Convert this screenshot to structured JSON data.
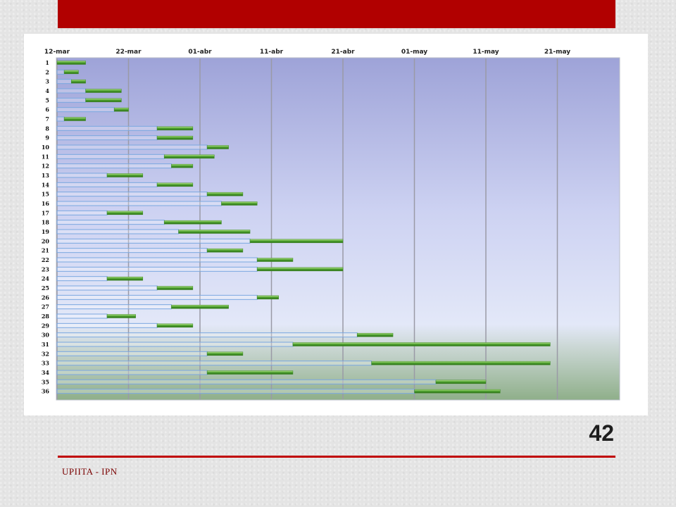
{
  "slide": {
    "number": "42",
    "footer": "UPIITA - IPN",
    "accent_color": "#b10000"
  },
  "chart_data": {
    "type": "gantt",
    "title": "",
    "x_ticks": [
      "12-mar",
      "22-mar",
      "01-abr",
      "11-abr",
      "21-abr",
      "01-may",
      "11-may",
      "21-may"
    ],
    "x_tick_day_values": [
      0,
      10,
      20,
      30,
      40,
      50,
      60,
      70
    ],
    "xlim_days": [
      0,
      79
    ],
    "grid": "vertical",
    "colors": {
      "bar": "#4a9f2c",
      "leader": "#7aa7e0",
      "background_top": "#9ea3d8",
      "background_bottom": "#8faf8a"
    },
    "tasks": [
      {
        "label": "1",
        "start": 0,
        "end": 4
      },
      {
        "label": "2",
        "start": 1,
        "end": 3
      },
      {
        "label": "3",
        "start": 2,
        "end": 4
      },
      {
        "label": "4",
        "start": 4,
        "end": 9
      },
      {
        "label": "5",
        "start": 4,
        "end": 9
      },
      {
        "label": "6",
        "start": 8,
        "end": 10
      },
      {
        "label": "7",
        "start": 1,
        "end": 4
      },
      {
        "label": "8",
        "start": 14,
        "end": 19
      },
      {
        "label": "9",
        "start": 14,
        "end": 19
      },
      {
        "label": "10",
        "start": 21,
        "end": 24
      },
      {
        "label": "11",
        "start": 15,
        "end": 22
      },
      {
        "label": "12",
        "start": 16,
        "end": 19
      },
      {
        "label": "13",
        "start": 7,
        "end": 12
      },
      {
        "label": "14",
        "start": 14,
        "end": 19
      },
      {
        "label": "15",
        "start": 21,
        "end": 26
      },
      {
        "label": "16",
        "start": 23,
        "end": 28
      },
      {
        "label": "17",
        "start": 7,
        "end": 12
      },
      {
        "label": "18",
        "start": 15,
        "end": 23
      },
      {
        "label": "19",
        "start": 17,
        "end": 27
      },
      {
        "label": "20",
        "start": 27,
        "end": 40
      },
      {
        "label": "21",
        "start": 21,
        "end": 26
      },
      {
        "label": "22",
        "start": 28,
        "end": 33
      },
      {
        "label": "23",
        "start": 28,
        "end": 40
      },
      {
        "label": "24",
        "start": 7,
        "end": 12
      },
      {
        "label": "25",
        "start": 14,
        "end": 19
      },
      {
        "label": "26",
        "start": 28,
        "end": 31
      },
      {
        "label": "27",
        "start": 16,
        "end": 24
      },
      {
        "label": "28",
        "start": 7,
        "end": 11
      },
      {
        "label": "29",
        "start": 14,
        "end": 19
      },
      {
        "label": "30",
        "start": 42,
        "end": 47
      },
      {
        "label": "31",
        "start": 33,
        "end": 69
      },
      {
        "label": "32",
        "start": 21,
        "end": 26
      },
      {
        "label": "33",
        "start": 44,
        "end": 69
      },
      {
        "label": "34",
        "start": 21,
        "end": 33
      },
      {
        "label": "35",
        "start": 53,
        "end": 60
      },
      {
        "label": "36",
        "start": 50,
        "end": 62
      }
    ]
  }
}
